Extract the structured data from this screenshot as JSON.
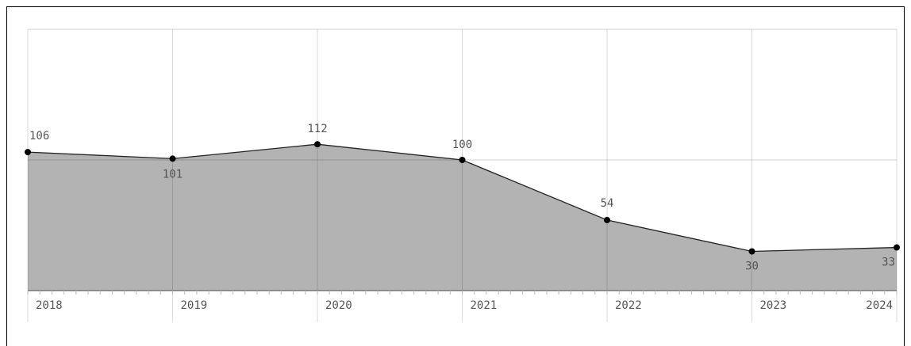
{
  "chart_data": {
    "type": "area",
    "x": [
      2018,
      2019,
      2020,
      2021,
      2022,
      2023,
      2024
    ],
    "values": [
      106,
      101,
      112,
      100,
      54,
      30,
      33
    ],
    "xlim": [
      2018,
      2024
    ],
    "xticks": [
      2018,
      2019,
      2020,
      2021,
      2022,
      2023,
      2024
    ],
    "ylim": [
      0,
      200
    ],
    "yticks": [
      0,
      100,
      200
    ],
    "color": "#b3b3b3",
    "line_color": "#222222",
    "grid": true
  }
}
